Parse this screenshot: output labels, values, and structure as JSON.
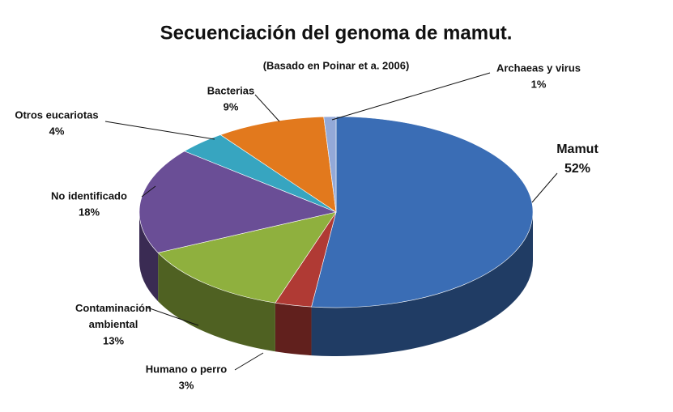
{
  "chart_data": {
    "type": "pie",
    "title": "Secuenciación del genoma de mamut.",
    "subtitle": "(Basado  en Poinar et a. 2006)",
    "categories": [
      "Mamut",
      "Humano o perro",
      "Contaminación ambiental",
      "No identificado",
      "Otros eucariotas",
      "Bacterias",
      "Archaeas y virus"
    ],
    "values": [
      52,
      3,
      13,
      18,
      4,
      9,
      1
    ],
    "value_labels": [
      "52%",
      "3%",
      "13%",
      "18%",
      "4%",
      "9%",
      "1%"
    ],
    "colors": [
      "#3a6db5",
      "#b03a34",
      "#8fb03e",
      "#6a4e96",
      "#37a5c0",
      "#e2791d",
      "#93a9d8"
    ]
  }
}
